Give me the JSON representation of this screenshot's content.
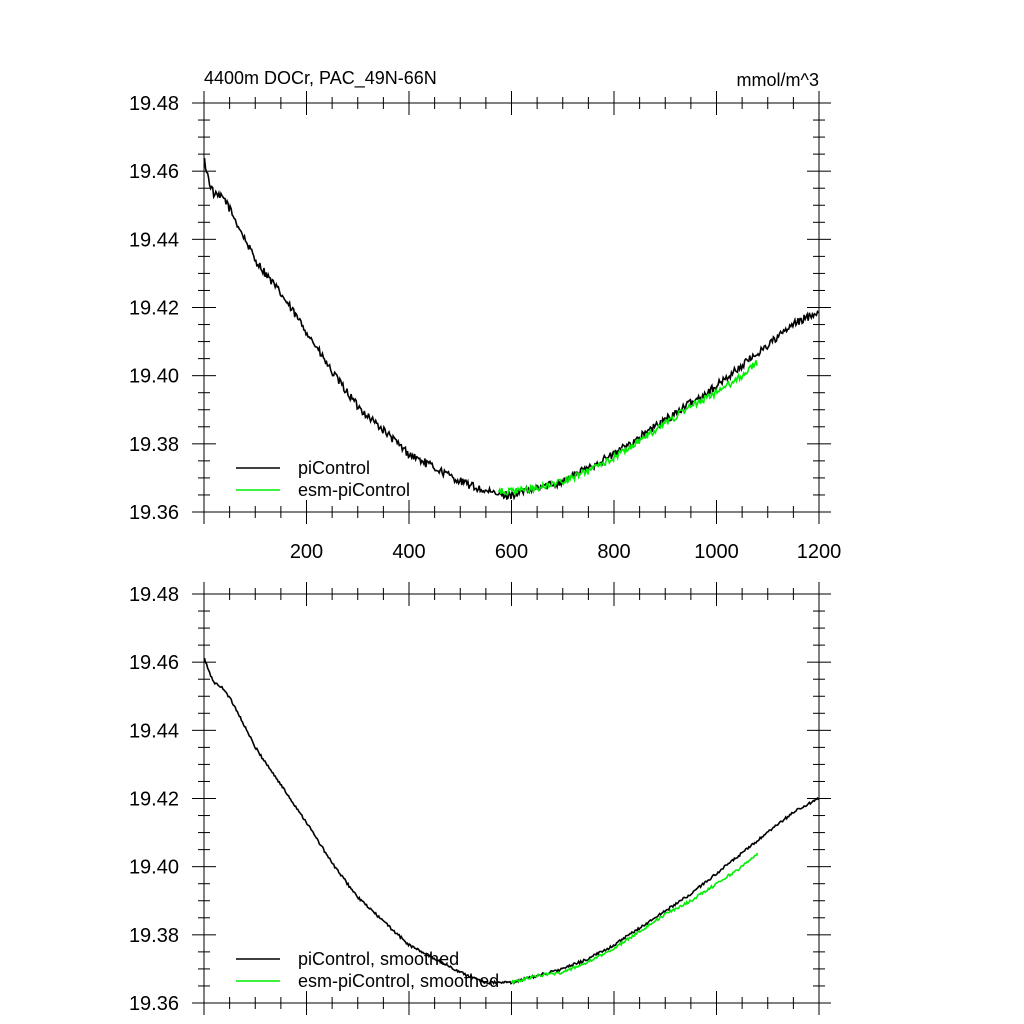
{
  "figure": {
    "title_left": "4400m DOCr, PAC_49N-66N",
    "title_right": "mmol/m^3"
  },
  "colors": {
    "pi": "#000000",
    "esm": "#00ee00"
  },
  "chart_data": [
    {
      "type": "line",
      "title": "4400m DOCr, PAC_49N-66N",
      "units": "mmol/m^3",
      "xlim": [
        0,
        1200
      ],
      "ylim": [
        19.36,
        19.48
      ],
      "xticks": [
        200,
        400,
        600,
        800,
        1000,
        1200
      ],
      "yticks": [
        19.36,
        19.38,
        19.4,
        19.42,
        19.44,
        19.46,
        19.48
      ],
      "ytick_labels": [
        "19.36",
        "19.38",
        "19.40",
        "19.42",
        "19.44",
        "19.46",
        "19.48"
      ],
      "xtick_labels": [
        "200",
        "400",
        "600",
        "800",
        "1000",
        "1200"
      ],
      "legend_position": "bottom-left",
      "series": [
        {
          "name": "piControl",
          "color": "#000000",
          "noise": 0.0012,
          "points": [
            [
              1,
              19.463
            ],
            [
              10,
              19.457
            ],
            [
              20,
              19.453
            ],
            [
              40,
              19.452
            ],
            [
              60,
              19.446
            ],
            [
              80,
              19.44
            ],
            [
              100,
              19.434
            ],
            [
              150,
              19.424
            ],
            [
              200,
              19.413
            ],
            [
              250,
              19.401
            ],
            [
              300,
              19.391
            ],
            [
              350,
              19.384
            ],
            [
              400,
              19.377
            ],
            [
              450,
              19.373
            ],
            [
              500,
              19.369
            ],
            [
              550,
              19.366
            ],
            [
              580,
              19.365
            ],
            [
              600,
              19.365
            ],
            [
              650,
              19.367
            ],
            [
              700,
              19.369
            ],
            [
              750,
              19.373
            ],
            [
              800,
              19.377
            ],
            [
              850,
              19.382
            ],
            [
              900,
              19.387
            ],
            [
              950,
              19.392
            ],
            [
              1000,
              19.397
            ],
            [
              1050,
              19.403
            ],
            [
              1100,
              19.409
            ],
            [
              1150,
              19.415
            ],
            [
              1200,
              19.419
            ]
          ]
        },
        {
          "name": "esm-piControl",
          "color": "#00ee00",
          "noise": 0.001,
          "points": [
            [
              575,
              19.366
            ],
            [
              600,
              19.366
            ],
            [
              650,
              19.367
            ],
            [
              700,
              19.369
            ],
            [
              750,
              19.372
            ],
            [
              800,
              19.376
            ],
            [
              850,
              19.381
            ],
            [
              900,
              19.386
            ],
            [
              950,
              19.391
            ],
            [
              1000,
              19.395
            ],
            [
              1050,
              19.4
            ],
            [
              1080,
              19.404
            ]
          ]
        }
      ]
    },
    {
      "type": "line",
      "xlim": [
        0,
        1200
      ],
      "ylim": [
        19.36,
        19.48
      ],
      "xticks": [
        200,
        400,
        600,
        800,
        1000,
        1200
      ],
      "yticks": [
        19.36,
        19.38,
        19.4,
        19.42,
        19.44,
        19.46,
        19.48
      ],
      "ytick_labels": [
        "19.36",
        "19.38",
        "19.40",
        "19.42",
        "19.44",
        "19.46",
        "19.48"
      ],
      "legend_position": "bottom-left",
      "series": [
        {
          "name": "piControl, smoothed",
          "color": "#000000",
          "noise": 0.0004,
          "points": [
            [
              1,
              19.461
            ],
            [
              10,
              19.457
            ],
            [
              20,
              19.454
            ],
            [
              40,
              19.452
            ],
            [
              60,
              19.447
            ],
            [
              80,
              19.441
            ],
            [
              100,
              19.435
            ],
            [
              150,
              19.424
            ],
            [
              200,
              19.413
            ],
            [
              250,
              19.401
            ],
            [
              300,
              19.391
            ],
            [
              350,
              19.384
            ],
            [
              400,
              19.377
            ],
            [
              450,
              19.373
            ],
            [
              500,
              19.369
            ],
            [
              550,
              19.366
            ],
            [
              580,
              19.366
            ],
            [
              600,
              19.366
            ],
            [
              650,
              19.368
            ],
            [
              700,
              19.37
            ],
            [
              750,
              19.373
            ],
            [
              800,
              19.377
            ],
            [
              850,
              19.382
            ],
            [
              900,
              19.387
            ],
            [
              950,
              19.392
            ],
            [
              1000,
              19.398
            ],
            [
              1050,
              19.404
            ],
            [
              1100,
              19.41
            ],
            [
              1150,
              19.416
            ],
            [
              1200,
              19.42
            ]
          ]
        },
        {
          "name": "esm-piControl, smoothed",
          "color": "#00ee00",
          "noise": 0.0004,
          "points": [
            [
              600,
              19.366
            ],
            [
              650,
              19.368
            ],
            [
              700,
              19.369
            ],
            [
              750,
              19.372
            ],
            [
              800,
              19.376
            ],
            [
              850,
              19.381
            ],
            [
              900,
              19.386
            ],
            [
              950,
              19.39
            ],
            [
              1000,
              19.395
            ],
            [
              1050,
              19.4
            ],
            [
              1080,
              19.404
            ]
          ]
        }
      ]
    }
  ]
}
